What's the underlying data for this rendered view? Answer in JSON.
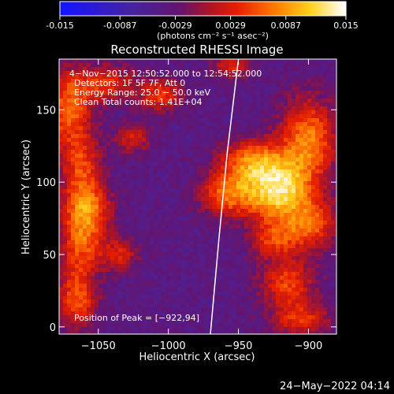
{
  "colorbar": {
    "ticks": [
      "-0.015",
      "-0.0087",
      "-0.0029",
      "0.0029",
      "0.0087",
      "0.015"
    ],
    "tick_values": [
      -0.015,
      -0.0087,
      -0.0029,
      0.0029,
      0.0087,
      0.015
    ],
    "range": [
      -0.015,
      0.015
    ],
    "units_label": "(photons cm⁻² s⁻¹ asec⁻²)"
  },
  "chart_data": {
    "type": "heatmap",
    "title": "Reconstructed RHESSI Image",
    "xlabel": "Heliocentric X (arcsec)",
    "ylabel": "Heliocentric Y (arcsec)",
    "xlim": [
      -1078,
      -880
    ],
    "ylim": [
      -5,
      185
    ],
    "xticks": [
      -1050,
      -1000,
      -950,
      -900
    ],
    "xtick_labels": [
      "−1050",
      "−1000",
      "−950",
      "−900"
    ],
    "yticks": [
      0,
      50,
      100,
      150
    ],
    "ytick_labels": [
      "0",
      "50",
      "100",
      "150"
    ],
    "annotations": [
      "4−Nov−2015 12:50:52.000 to 12:54:52.000",
      "Detectors: 1F 5F 7F, Att 0",
      "Energy Range: 25.0 − 50.0 keV",
      "Clean     Total counts: 1.41E+04"
    ],
    "peak_label": "Position of Peak = [−922,94]",
    "peak": [
      -922,
      94
    ],
    "limb_curve": [
      [
        -970,
        -5
      ],
      [
        -964,
        60
      ],
      [
        -958,
        120
      ],
      [
        -950,
        185
      ]
    ],
    "sources": [
      {
        "x": -922,
        "y": 94,
        "amp": 0.015,
        "sx": 17,
        "sy": 15
      },
      {
        "x": -900,
        "y": 130,
        "amp": 0.0105,
        "sx": 14,
        "sy": 20
      },
      {
        "x": -940,
        "y": 115,
        "amp": 0.009,
        "sx": 16,
        "sy": 10
      },
      {
        "x": -958,
        "y": 92,
        "amp": 0.0088,
        "sx": 14,
        "sy": 11
      },
      {
        "x": -898,
        "y": 70,
        "amp": 0.008,
        "sx": 14,
        "sy": 12
      },
      {
        "x": -925,
        "y": 60,
        "amp": 0.0062,
        "sx": 12,
        "sy": 9
      },
      {
        "x": -915,
        "y": 30,
        "amp": 0.0078,
        "sx": 14,
        "sy": 12
      },
      {
        "x": -905,
        "y": 5,
        "amp": 0.0065,
        "sx": 15,
        "sy": 8
      },
      {
        "x": -1072,
        "y": 150,
        "amp": 0.009,
        "sx": 12,
        "sy": 18
      },
      {
        "x": -1062,
        "y": 110,
        "amp": 0.0075,
        "sx": 10,
        "sy": 16
      },
      {
        "x": -1058,
        "y": 82,
        "amp": 0.009,
        "sx": 12,
        "sy": 12
      },
      {
        "x": -1062,
        "y": 58,
        "amp": 0.0082,
        "sx": 11,
        "sy": 14
      },
      {
        "x": -1035,
        "y": 50,
        "amp": 0.006,
        "sx": 9,
        "sy": 8
      },
      {
        "x": -1065,
        "y": 20,
        "amp": 0.0088,
        "sx": 10,
        "sy": 15
      },
      {
        "x": -1045,
        "y": 168,
        "amp": 0.0068,
        "sx": 16,
        "sy": 9
      },
      {
        "x": -1005,
        "y": 160,
        "amp": 0.0072,
        "sx": 11,
        "sy": 8
      },
      {
        "x": -1025,
        "y": 130,
        "amp": 0.0058,
        "sx": 9,
        "sy": 7
      },
      {
        "x": -955,
        "y": 180,
        "amp": 0.006,
        "sx": 10,
        "sy": 6
      }
    ],
    "background_level": -0.0042
  },
  "timestamp": "24−May−2022 04:14",
  "colors": {
    "background": "#000000",
    "text": "#ffffff"
  }
}
